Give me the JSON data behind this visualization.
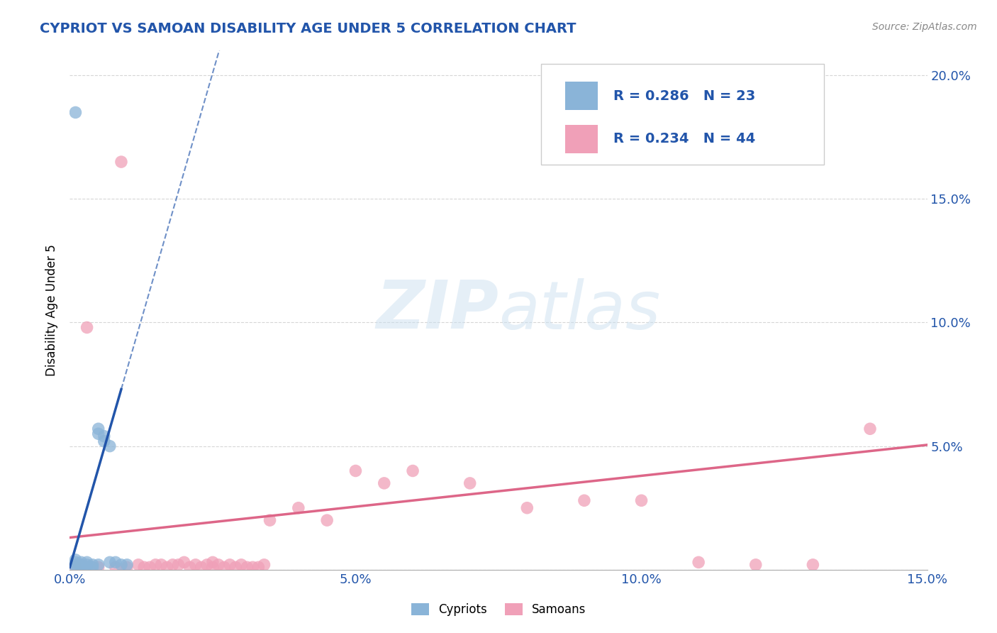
{
  "title": "CYPRIOT VS SAMOAN DISABILITY AGE UNDER 5 CORRELATION CHART",
  "source": "Source: ZipAtlas.com",
  "ylabel": "Disability Age Under 5",
  "xlim": [
    0.0,
    0.15
  ],
  "ylim": [
    0.0,
    0.21
  ],
  "xtick_vals": [
    0.0,
    0.05,
    0.1,
    0.15
  ],
  "xtick_labels": [
    "0.0%",
    "5.0%",
    "10.0%",
    "15.0%"
  ],
  "ytick_vals": [
    0.0,
    0.05,
    0.1,
    0.15,
    0.2
  ],
  "ytick_labels_right": [
    "",
    "5.0%",
    "10.0%",
    "15.0%",
    "20.0%"
  ],
  "cypriot_color": "#8ab4d8",
  "samoan_color": "#f0a0b8",
  "cypriot_line_color": "#2255aa",
  "samoan_line_color": "#dd6688",
  "title_color": "#2255aa",
  "axis_color": "#2255aa",
  "legend_text_color": "#2255aa",
  "watermark_color": "#cce0f0",
  "grid_color": "#cccccc",
  "background_color": "#ffffff",
  "cypriot_R": 0.286,
  "cypriot_N": 23,
  "samoan_R": 0.234,
  "samoan_N": 44,
  "cypriot_x": [
    0.001,
    0.001,
    0.001,
    0.001,
    0.002,
    0.002,
    0.002,
    0.003,
    0.003,
    0.003,
    0.004,
    0.004,
    0.005,
    0.005,
    0.005,
    0.006,
    0.006,
    0.007,
    0.007,
    0.008,
    0.009,
    0.01,
    0.001
  ],
  "cypriot_y": [
    0.185,
    0.001,
    0.002,
    0.003,
    0.001,
    0.002,
    0.003,
    0.001,
    0.002,
    0.003,
    0.001,
    0.002,
    0.055,
    0.057,
    0.002,
    0.054,
    0.052,
    0.05,
    0.003,
    0.003,
    0.002,
    0.002,
    0.004
  ],
  "samoan_x": [
    0.001,
    0.005,
    0.008,
    0.01,
    0.012,
    0.013,
    0.014,
    0.015,
    0.016,
    0.017,
    0.018,
    0.019,
    0.02,
    0.021,
    0.022,
    0.023,
    0.024,
    0.025,
    0.025,
    0.026,
    0.027,
    0.028,
    0.029,
    0.03,
    0.031,
    0.032,
    0.033,
    0.034,
    0.035,
    0.04,
    0.045,
    0.05,
    0.055,
    0.06,
    0.07,
    0.08,
    0.09,
    0.1,
    0.11,
    0.12,
    0.13,
    0.14,
    0.009,
    0.003
  ],
  "samoan_y": [
    0.001,
    0.001,
    0.001,
    0.001,
    0.002,
    0.001,
    0.001,
    0.002,
    0.002,
    0.001,
    0.002,
    0.002,
    0.003,
    0.001,
    0.002,
    0.001,
    0.002,
    0.003,
    0.001,
    0.002,
    0.001,
    0.002,
    0.001,
    0.002,
    0.001,
    0.001,
    0.001,
    0.002,
    0.02,
    0.025,
    0.02,
    0.04,
    0.035,
    0.04,
    0.035,
    0.025,
    0.028,
    0.028,
    0.003,
    0.002,
    0.002,
    0.057,
    0.165,
    0.098
  ],
  "figsize": [
    14.06,
    8.92
  ],
  "dpi": 100
}
